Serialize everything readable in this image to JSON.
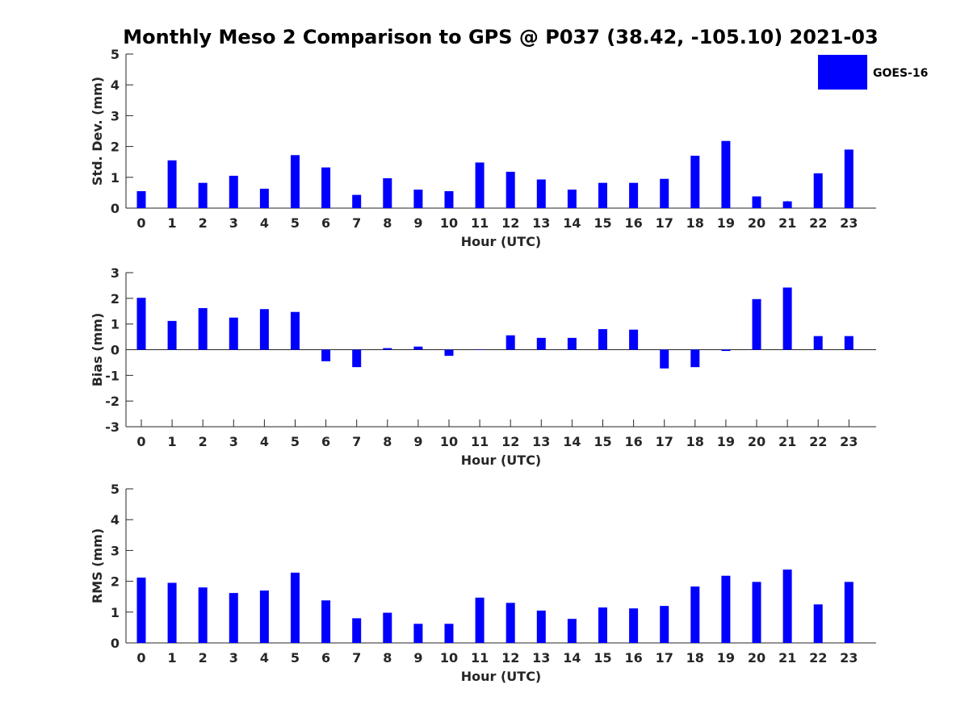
{
  "chart_data": {
    "type": "bar",
    "title": "Monthly Meso 2 Comparison to GPS @ P037 (38.42, -105.10) 2021-03",
    "bar_color": "#0000ff",
    "legend": {
      "label": "GOES-16",
      "position": "top-right"
    },
    "categories": [
      "0",
      "1",
      "2",
      "3",
      "4",
      "5",
      "6",
      "7",
      "8",
      "9",
      "10",
      "11",
      "12",
      "13",
      "14",
      "15",
      "16",
      "17",
      "18",
      "19",
      "20",
      "21",
      "22",
      "23"
    ],
    "panels": [
      {
        "ylabel": "Std. Dev. (mm)",
        "xlabel": "Hour (UTC)",
        "ylim": [
          0,
          5
        ],
        "yticks": [
          0,
          1,
          2,
          3,
          4,
          5
        ],
        "values": [
          0.55,
          1.55,
          0.82,
          1.05,
          0.63,
          1.72,
          1.32,
          0.43,
          0.97,
          0.6,
          0.55,
          1.48,
          1.18,
          0.93,
          0.6,
          0.82,
          0.82,
          0.95,
          1.7,
          2.18,
          0.38,
          0.22,
          1.13,
          1.9
        ]
      },
      {
        "ylabel": "Bias (mm)",
        "xlabel": "Hour (UTC)",
        "ylim": [
          -3,
          3
        ],
        "yticks": [
          -3,
          -2,
          -1,
          0,
          1,
          2,
          3
        ],
        "values": [
          2.02,
          1.12,
          1.62,
          1.25,
          1.58,
          1.47,
          -0.45,
          -0.68,
          0.06,
          0.12,
          -0.24,
          0.0,
          0.56,
          0.46,
          0.46,
          0.8,
          0.78,
          -0.73,
          -0.68,
          -0.05,
          1.97,
          2.42,
          0.53,
          0.53
        ]
      },
      {
        "ylabel": "RMS (mm)",
        "xlabel": "Hour (UTC)",
        "ylim": [
          0,
          5
        ],
        "yticks": [
          0,
          1,
          2,
          3,
          4,
          5
        ],
        "values": [
          2.12,
          1.95,
          1.8,
          1.62,
          1.7,
          2.28,
          1.38,
          0.8,
          0.98,
          0.62,
          0.62,
          1.47,
          1.3,
          1.05,
          0.78,
          1.15,
          1.12,
          1.2,
          1.83,
          2.18,
          1.98,
          2.38,
          1.25,
          1.98
        ]
      }
    ]
  }
}
